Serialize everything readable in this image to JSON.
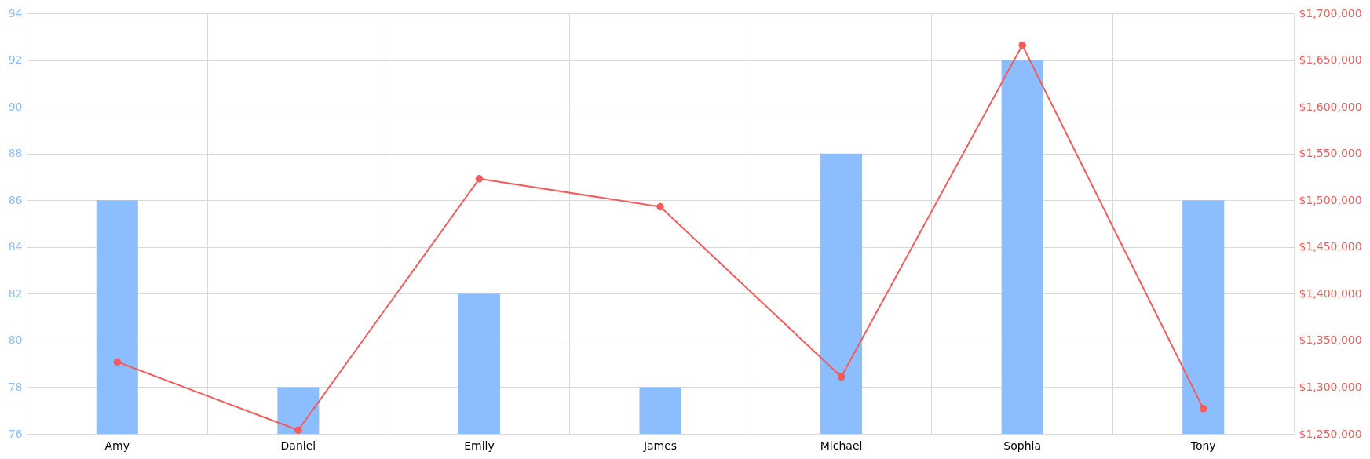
{
  "chart_data": {
    "type": "bar",
    "categories": [
      "Amy",
      "Daniel",
      "Emily",
      "James",
      "Michael",
      "Sophia",
      "Tony"
    ],
    "series": [
      {
        "color": "#8cbdff",
        "values": [
          86,
          78,
          82,
          78,
          88,
          92,
          86
        ]
      },
      {
        "type": "line",
        "axis": "y2",
        "color": "#f45b5b",
        "marker": "circle",
        "values": [
          1327000,
          1254000,
          1523000,
          1493000,
          1311000,
          1666000,
          1277000
        ]
      }
    ],
    "ylim": [
      76,
      94
    ],
    "yticks": [
      76,
      78,
      80,
      82,
      84,
      86,
      88,
      90,
      92,
      94
    ],
    "y2lim": [
      1250000,
      1700000
    ],
    "y2ticks": [
      {
        "value": 1250000,
        "label": "$1,250,000"
      },
      {
        "value": 1300000,
        "label": "$1,300,000"
      },
      {
        "value": 1350000,
        "label": "$1,350,000"
      },
      {
        "value": 1400000,
        "label": "$1,400,000"
      },
      {
        "value": 1450000,
        "label": "$1,450,000"
      },
      {
        "value": 1500000,
        "label": "$1,500,000"
      },
      {
        "value": 1550000,
        "label": "$1,550,000"
      },
      {
        "value": 1600000,
        "label": "$1,600,000"
      },
      {
        "value": 1650000,
        "label": "$1,650,000"
      },
      {
        "value": 1700000,
        "label": "$1,700,000"
      }
    ],
    "grid": true
  }
}
